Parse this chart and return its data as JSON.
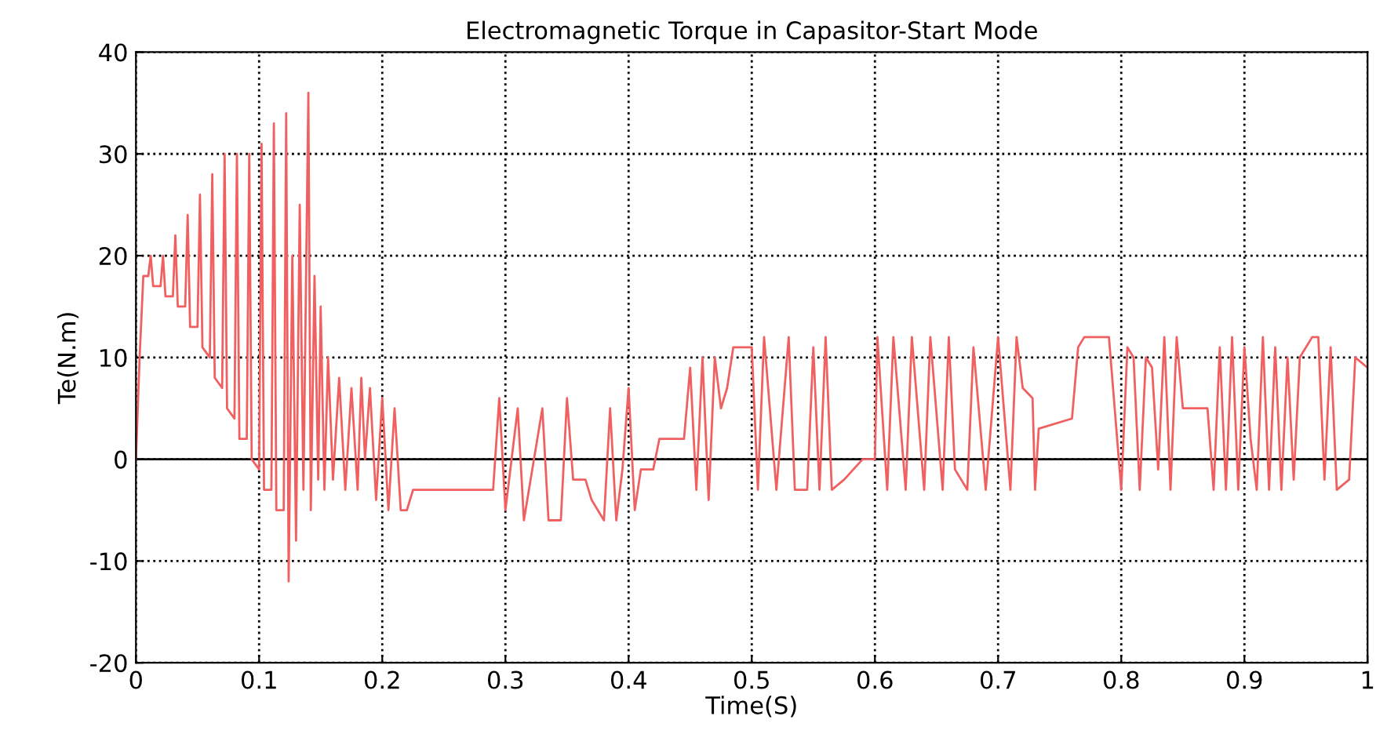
{
  "chart_data": {
    "type": "line",
    "title": "Electromagnetic Torque in Capasitor-Start Mode",
    "xlabel": "Time(S)",
    "ylabel": "Te(N.m)",
    "xlim": [
      0,
      1
    ],
    "ylim": [
      -20,
      40
    ],
    "xticks": [
      0,
      0.1,
      0.2,
      0.3,
      0.4,
      0.5,
      0.6,
      0.7,
      0.8,
      0.9,
      1
    ],
    "yticks": [
      -20,
      -10,
      0,
      10,
      20,
      30,
      40
    ],
    "grid": true,
    "line_style": "solid",
    "ref_lines": [
      {
        "axis": "y",
        "value": 0,
        "color": "#000000"
      }
    ],
    "series": [
      {
        "color": "#f06060",
        "x": [
          0,
          0.003,
          0.006,
          0.01,
          0.012,
          0.014,
          0.02,
          0.022,
          0.024,
          0.03,
          0.032,
          0.034,
          0.04,
          0.042,
          0.044,
          0.05,
          0.052,
          0.054,
          0.06,
          0.062,
          0.064,
          0.07,
          0.072,
          0.074,
          0.08,
          0.082,
          0.084,
          0.09,
          0.092,
          0.094,
          0.1,
          0.102,
          0.104,
          0.11,
          0.112,
          0.114,
          0.12,
          0.122,
          0.124,
          0.127,
          0.13,
          0.133,
          0.136,
          0.14,
          0.142,
          0.145,
          0.148,
          0.15,
          0.153,
          0.156,
          0.16,
          0.165,
          0.17,
          0.175,
          0.18,
          0.183,
          0.186,
          0.19,
          0.195,
          0.2,
          0.205,
          0.21,
          0.215,
          0.22,
          0.225,
          0.29,
          0.295,
          0.3,
          0.31,
          0.315,
          0.33,
          0.335,
          0.345,
          0.35,
          0.355,
          0.365,
          0.37,
          0.38,
          0.385,
          0.39,
          0.395,
          0.4,
          0.405,
          0.41,
          0.42,
          0.425,
          0.445,
          0.45,
          0.455,
          0.46,
          0.465,
          0.47,
          0.475,
          0.48,
          0.485,
          0.5,
          0.505,
          0.51,
          0.52,
          0.53,
          0.535,
          0.545,
          0.55,
          0.555,
          0.56,
          0.565,
          0.575,
          0.59,
          0.6,
          0.602,
          0.61,
          0.615,
          0.625,
          0.63,
          0.64,
          0.645,
          0.655,
          0.66,
          0.665,
          0.675,
          0.68,
          0.69,
          0.7,
          0.71,
          0.715,
          0.72,
          0.728,
          0.73,
          0.733,
          0.76,
          0.765,
          0.77,
          0.79,
          0.8,
          0.805,
          0.81,
          0.815,
          0.82,
          0.825,
          0.83,
          0.835,
          0.84,
          0.845,
          0.85,
          0.87,
          0.875,
          0.88,
          0.885,
          0.89,
          0.895,
          0.9,
          0.905,
          0.91,
          0.915,
          0.92,
          0.925,
          0.93,
          0.935,
          0.94,
          0.945,
          0.955,
          0.96,
          0.965,
          0.97,
          0.975,
          0.985,
          0.99,
          1.0
        ],
        "values": [
          0,
          10,
          18,
          18,
          20,
          17,
          17,
          20,
          16,
          16,
          22,
          15,
          15,
          24,
          13,
          13,
          26,
          11,
          10,
          28,
          8,
          7,
          30,
          5,
          4,
          30,
          2,
          2,
          30,
          0,
          -1,
          31,
          -3,
          -3,
          33,
          -5,
          -5,
          34,
          -12,
          20,
          -8,
          25,
          -3,
          36,
          -5,
          18,
          -2,
          15,
          -3,
          10,
          -2,
          8,
          -3,
          7,
          -3,
          8,
          0,
          7,
          -4,
          6,
          -5,
          5,
          -5,
          -5,
          -3,
          -3,
          6,
          -5,
          5,
          -6,
          5,
          -6,
          -6,
          6,
          -2,
          -2,
          -4,
          -6,
          5,
          -6,
          -1,
          7,
          -5,
          -1,
          -1,
          2,
          2,
          9,
          -3,
          10,
          -4,
          10,
          5,
          7,
          11,
          11,
          -3,
          12,
          -3,
          12,
          -3,
          -3,
          11,
          -3,
          12,
          -3,
          -2,
          0,
          0,
          12,
          -3,
          12,
          -3,
          12,
          -3,
          12,
          -3,
          12,
          -1,
          -3,
          11,
          -3,
          12,
          -3,
          12,
          7,
          6,
          -3,
          3,
          4,
          11,
          12,
          12,
          -3,
          11,
          10,
          -3,
          10,
          9,
          -1,
          12,
          -3,
          12,
          5,
          5,
          -3,
          11,
          -3,
          12,
          -3,
          11,
          2,
          -3,
          12,
          -3,
          11,
          -3,
          10,
          -2,
          10,
          12,
          12,
          -2,
          11,
          -3,
          -2,
          10,
          9
        ]
      }
    ]
  }
}
